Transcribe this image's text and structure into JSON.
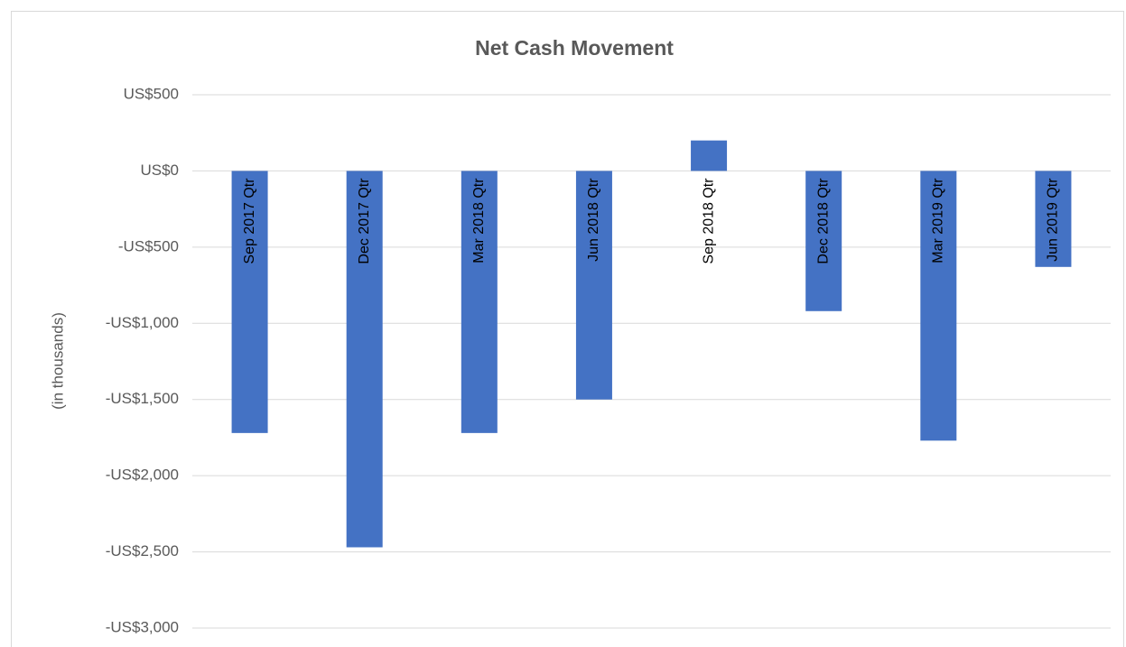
{
  "chart_data": {
    "type": "bar",
    "title": "Net Cash Movement",
    "y_label": "(in thousands)",
    "categories": [
      "Sep 2017 Qtr",
      "Dec 2017 Qtr",
      "Mar 2018 Qtr",
      "Jun 2018 Qtr",
      "Sep 2018 Qtr",
      "Dec 2018 Qtr",
      "Mar 2019 Qtr",
      "Jun 2019 Qtr"
    ],
    "values": [
      -1720,
      -2470,
      -1720,
      -1500,
      200,
      -920,
      -1770,
      -630
    ],
    "color": "#4472c4",
    "ylim": [
      -3000,
      500
    ],
    "yticks": [
      {
        "value": 500,
        "label": "US$500"
      },
      {
        "value": 0,
        "label": "US$0"
      },
      {
        "value": -500,
        "label": "-US$500"
      },
      {
        "value": -1000,
        "label": "-US$1,000"
      },
      {
        "value": -1500,
        "label": "-US$1,500"
      },
      {
        "value": -2000,
        "label": "-US$2,000"
      },
      {
        "value": -2500,
        "label": "-US$2,500"
      },
      {
        "value": -3000,
        "label": "-US$3,000"
      }
    ],
    "grid": true
  }
}
